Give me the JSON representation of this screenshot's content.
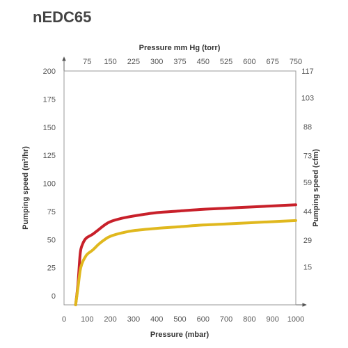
{
  "chart_data": {
    "type": "line",
    "title": "nEDC65",
    "xlabel": "Pressure (mbar)",
    "x2label": "Pressure mm Hg (torr)",
    "ylabel": "Pumping speed (m³/hr)",
    "y2label": "Pumping speed (cfm)",
    "xlim": [
      0,
      1000
    ],
    "ylim": [
      -8,
      200
    ],
    "x_ticks": [
      "0",
      "100",
      "200",
      "300",
      "400",
      "500",
      "600",
      "700",
      "800",
      "900",
      "1000"
    ],
    "x2_ticks": [
      "75",
      "150",
      "225",
      "300",
      "375",
      "450",
      "525",
      "600",
      "675",
      "750"
    ],
    "y_ticks": [
      "0",
      "25",
      "50",
      "75",
      "100",
      "125",
      "150",
      "175",
      "200"
    ],
    "y2_ticks": [
      "15",
      "29",
      "44",
      "59",
      "73",
      "88",
      "103",
      "117"
    ],
    "grid": false,
    "series": [
      {
        "color": "#c8202a",
        "x": [
          50,
          60,
          70,
          80,
          90,
          100,
          125,
          150,
          175,
          200,
          250,
          300,
          400,
          500,
          600,
          700,
          800,
          900,
          1000
        ],
        "y": [
          -8,
          10,
          38,
          46,
          50,
          52,
          55,
          59,
          63,
          66,
          69,
          71,
          74,
          75.5,
          77,
          78,
          79,
          80,
          81
        ]
      },
      {
        "color": "#e0b81e",
        "x": [
          50,
          60,
          70,
          80,
          90,
          100,
          125,
          150,
          175,
          200,
          250,
          300,
          400,
          500,
          600,
          700,
          800,
          900,
          1000
        ],
        "y": [
          -8,
          7,
          23,
          30,
          34,
          37,
          41,
          46,
          50,
          53,
          56,
          58,
          60,
          61.5,
          63,
          64,
          65,
          66,
          67
        ]
      }
    ]
  }
}
